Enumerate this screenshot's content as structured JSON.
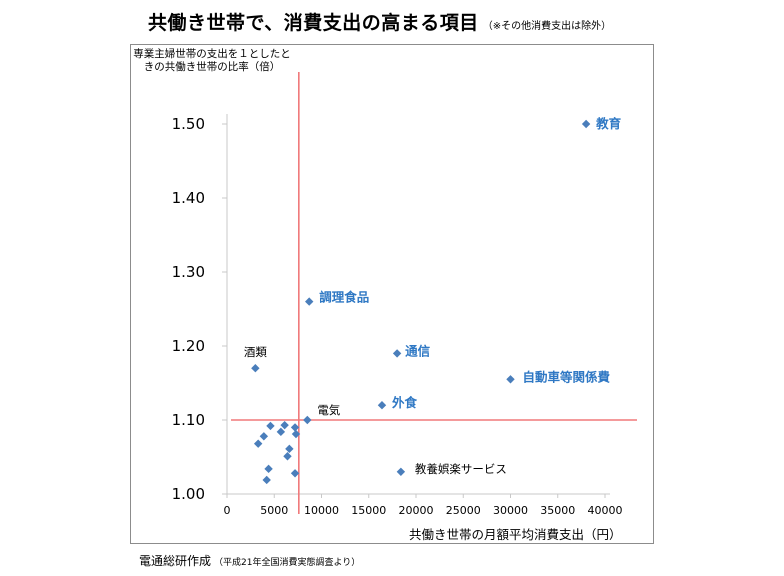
{
  "title": {
    "main": "共働き世帯で、消費支出の高まる項目",
    "note": "（※その他消費支出は除外）"
  },
  "source": {
    "main": "電通総研作成",
    "sub": "（平成21年全国消費実態調査より）"
  },
  "colors": {
    "marker": "#4a7ebb",
    "reference_line": "#f0787a",
    "highlight_label": "#2f78c4",
    "axis": "#c8c8c8",
    "frame": "#8c8c8c"
  },
  "chart_data": {
    "type": "scatter",
    "title": "共働き世帯で、消費支出の高まる項目（※その他消費支出は除外）",
    "xlabel": "共働き世帯の月額平均消費支出（円）",
    "ylabel": "専業主婦世帯の支出を１としたときの共働き世帯の比率（倍）",
    "xlim": [
      0,
      40000
    ],
    "ylim": [
      1.0,
      1.5
    ],
    "x_ticks": [
      "0",
      "5000",
      "10000",
      "15000",
      "20000",
      "25000",
      "30000",
      "35000",
      "40000"
    ],
    "y_ticks": [
      "1.00",
      "1.10",
      "1.20",
      "1.30",
      "1.40",
      "1.50"
    ],
    "grid": false,
    "legend": "none",
    "reference_lines": {
      "vertical_x": 7600,
      "horizontal_y": 1.1
    },
    "labeled_points": [
      {
        "label": "教育",
        "x": 38000,
        "y": 1.5,
        "highlight": true
      },
      {
        "label": "調理食品",
        "x": 8700,
        "y": 1.26,
        "highlight": true
      },
      {
        "label": "通信",
        "x": 18000,
        "y": 1.19,
        "highlight": true
      },
      {
        "label": "自動車等関係費",
        "x": 30000,
        "y": 1.155,
        "highlight": true
      },
      {
        "label": "外食",
        "x": 16400,
        "y": 1.12,
        "highlight": true
      },
      {
        "label": "酒類",
        "x": 3000,
        "y": 1.17,
        "highlight": false
      },
      {
        "label": "電気",
        "x": 8500,
        "y": 1.1,
        "highlight": false
      },
      {
        "label": "教養娯楽サービス",
        "x": 18400,
        "y": 1.03,
        "highlight": false
      }
    ],
    "unlabeled_points": [
      {
        "x": 4600,
        "y": 1.092
      },
      {
        "x": 6100,
        "y": 1.093
      },
      {
        "x": 7200,
        "y": 1.09
      },
      {
        "x": 5700,
        "y": 1.084
      },
      {
        "x": 7300,
        "y": 1.081
      },
      {
        "x": 3900,
        "y": 1.078
      },
      {
        "x": 3300,
        "y": 1.068
      },
      {
        "x": 6600,
        "y": 1.061
      },
      {
        "x": 6400,
        "y": 1.051
      },
      {
        "x": 4400,
        "y": 1.034
      },
      {
        "x": 7200,
        "y": 1.028
      },
      {
        "x": 4200,
        "y": 1.019
      }
    ]
  }
}
